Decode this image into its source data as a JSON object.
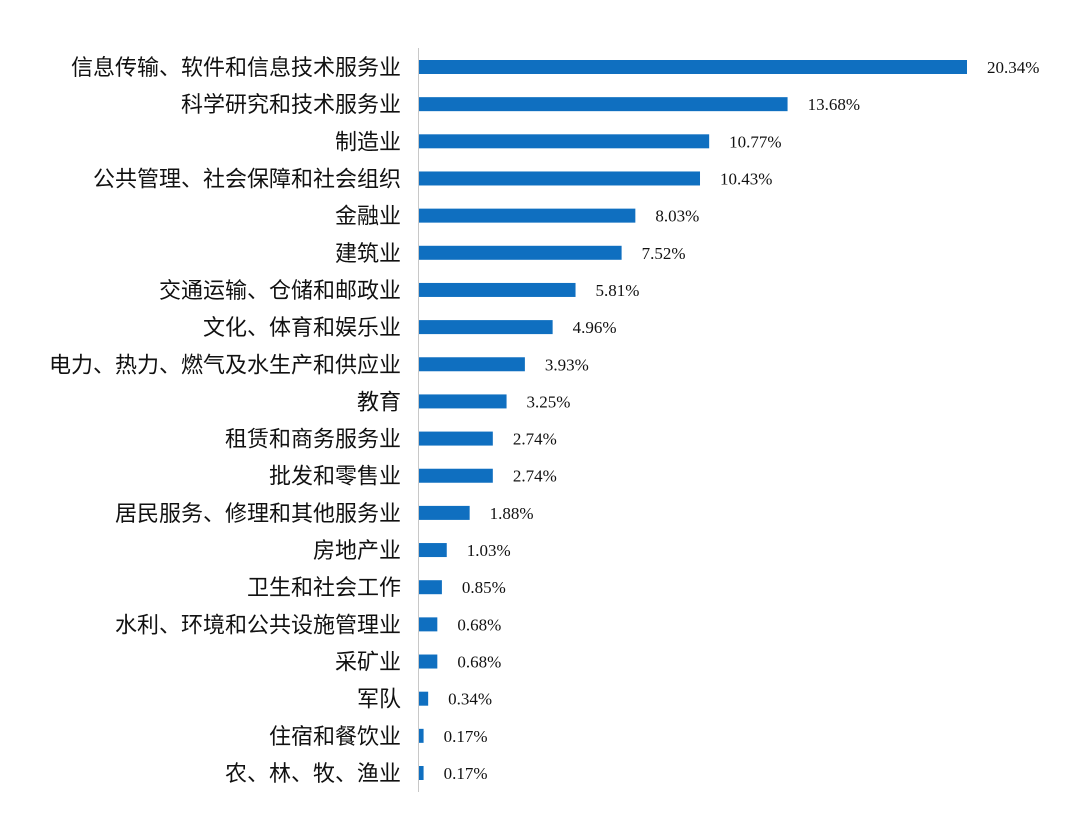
{
  "chart_data": {
    "type": "bar",
    "orientation": "horizontal",
    "title": "",
    "xlabel": "",
    "ylabel": "",
    "xlim": [
      0,
      20.34
    ],
    "grid": false,
    "legend": "none",
    "bar_color": "#0f6fc0",
    "categories": [
      "信息传输、软件和信息技术服务业",
      "科学研究和技术服务业",
      "制造业",
      "公共管理、社会保障和社会组织",
      "金融业",
      "建筑业",
      "交通运输、仓储和邮政业",
      "文化、体育和娱乐业",
      "电力、热力、燃气及水生产和供应业",
      "教育",
      "租赁和商务服务业",
      "批发和零售业",
      "居民服务、修理和其他服务业",
      "房地产业",
      "卫生和社会工作",
      "水利、环境和公共设施管理业",
      "采矿业",
      "军队",
      "住宿和餐饮业",
      "农、林、牧、渔业"
    ],
    "values": [
      20.34,
      13.68,
      10.77,
      10.43,
      8.03,
      7.52,
      5.81,
      4.96,
      3.93,
      3.25,
      2.74,
      2.74,
      1.88,
      1.03,
      0.85,
      0.68,
      0.68,
      0.34,
      0.17,
      0.17
    ],
    "data_labels": [
      "20.34%",
      "13.68%",
      "10.77%",
      "10.43%",
      "8.03%",
      "7.52%",
      "5.81%",
      "4.96%",
      "3.93%",
      "3.25%",
      "2.74%",
      "2.74%",
      "1.88%",
      "1.03%",
      "0.85%",
      "0.68%",
      "0.68%",
      "0.34%",
      "0.17%",
      "0.17%"
    ]
  }
}
